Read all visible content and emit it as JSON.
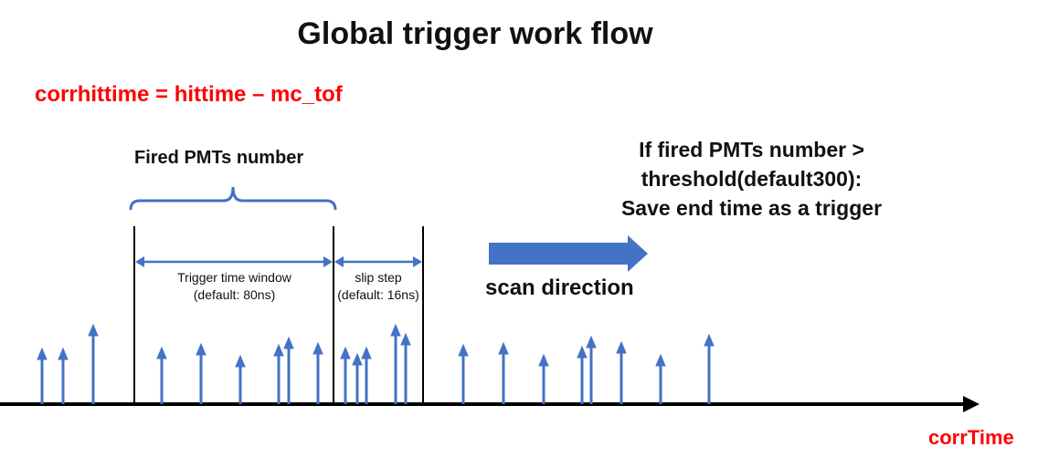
{
  "title": "Global trigger work flow",
  "formula": "corrhittime = hittime – mc_tof",
  "fired_label": "Fired PMTs number",
  "condition": {
    "line1": "If fired PMTs number >",
    "line2": "threshold(default300):",
    "line3": "Save end time as a trigger"
  },
  "window": {
    "line1": "Trigger time window",
    "line2": "(default: 80ns)"
  },
  "slip": {
    "line1": "slip step",
    "line2": "(default: 16ns)"
  },
  "scan_label": "scan direction",
  "axis_label": "corrTime",
  "colors": {
    "arrow": "#4472c4",
    "accent_text": "#ff0000",
    "axis": "#000000"
  }
}
